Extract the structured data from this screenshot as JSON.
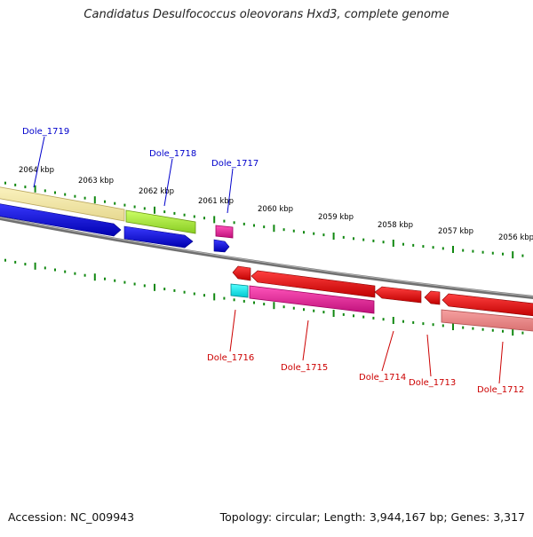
{
  "title": "Candidatus Desulfococcus oleovorans Hxd3, complete genome",
  "footer": {
    "accession": "Accession: NC_009943",
    "summary": "Topology: circular; Length: 3,944,167 bp; Genes: 3,317"
  },
  "scale_labels": [
    "2064 kbp",
    "2063 kbp",
    "2062 kbp",
    "2061 kbp",
    "2060 kbp",
    "2059 kbp",
    "2058 kbp",
    "2057 kbp",
    "2056 kbp"
  ],
  "genes_forward": [
    {
      "label": "Dole_1719",
      "color": "#0000cc"
    },
    {
      "label": "Dole_1718",
      "color": "#0000cc"
    },
    {
      "label": "Dole_1717",
      "color": "#0000cc"
    }
  ],
  "genes_reverse": [
    {
      "label": "Dole_1716",
      "color": "#cc0000"
    },
    {
      "label": "Dole_1715",
      "color": "#cc0000"
    },
    {
      "label": "Dole_1714",
      "color": "#cc0000"
    },
    {
      "label": "Dole_1713",
      "color": "#cc0000"
    },
    {
      "label": "Dole_1712",
      "color": "#cc0000"
    }
  ],
  "colors": {
    "forward_cds": "#0000ee",
    "reverse_cds": "#ee0000",
    "tick": "#118811",
    "backbone": "#808080"
  }
}
